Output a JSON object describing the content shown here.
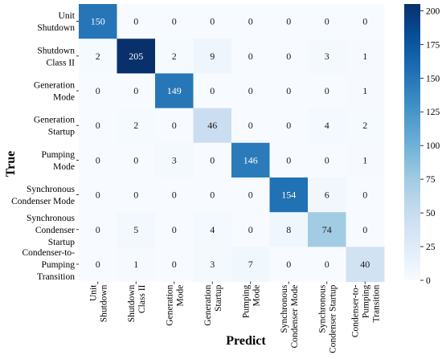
{
  "chart_data": {
    "type": "heatmap",
    "xlabel": "Predict",
    "ylabel": "True",
    "row_labels": [
      [
        "Unit",
        "Shutdown"
      ],
      [
        "Shutdown",
        "Class II"
      ],
      [
        "Generation",
        "Mode"
      ],
      [
        "Generation",
        "Startup"
      ],
      [
        "Pumping",
        "Mode"
      ],
      [
        "Synchronous",
        "Condenser Mode"
      ],
      [
        "Synchronous",
        "Condenser",
        "Startup"
      ],
      [
        "Condenser-to-",
        "Pumping",
        "Transition"
      ]
    ],
    "col_labels": [
      [
        "Unit",
        "Shutdown"
      ],
      [
        "Shutdown",
        "Class II"
      ],
      [
        "Generation",
        "Mode"
      ],
      [
        "Generation",
        "Startup"
      ],
      [
        "Pumping",
        "Mode"
      ],
      [
        "Synchronous",
        "Condenser Mode"
      ],
      [
        "Synchronous",
        "Condenser Startup"
      ],
      [
        "Condenser-to-",
        "Pumping",
        "Transition"
      ]
    ],
    "matrix": [
      [
        150,
        0,
        0,
        0,
        0,
        0,
        0,
        0
      ],
      [
        2,
        205,
        2,
        9,
        0,
        0,
        3,
        1
      ],
      [
        0,
        0,
        149,
        0,
        0,
        0,
        0,
        1
      ],
      [
        0,
        2,
        0,
        46,
        0,
        0,
        4,
        2
      ],
      [
        0,
        0,
        3,
        0,
        146,
        0,
        0,
        1
      ],
      [
        0,
        0,
        0,
        0,
        0,
        154,
        6,
        0
      ],
      [
        0,
        5,
        0,
        4,
        0,
        8,
        74,
        0
      ],
      [
        0,
        1,
        0,
        3,
        7,
        0,
        0,
        40
      ]
    ],
    "colorbar": {
      "min": 0,
      "max": 205,
      "ticks": [
        0,
        25,
        50,
        75,
        100,
        125,
        150,
        175,
        200
      ],
      "colormap": "Blues"
    }
  }
}
